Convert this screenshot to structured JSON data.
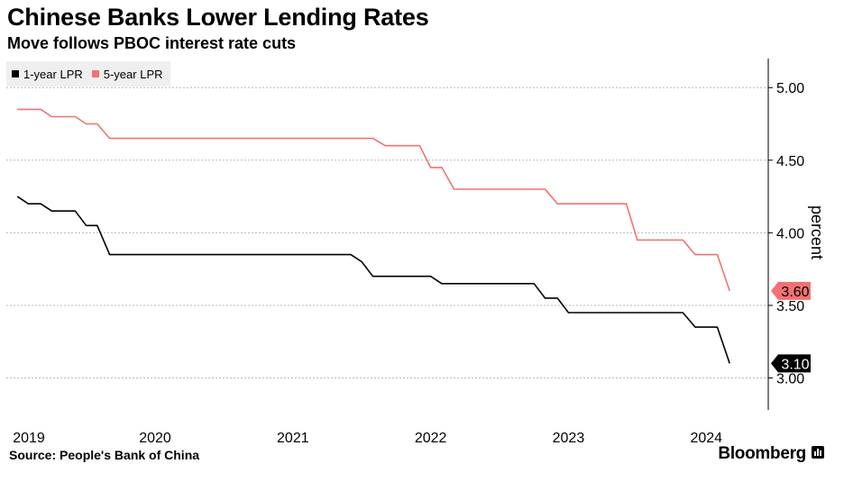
{
  "header": {
    "title": "Chinese Banks Lower Lending Rates",
    "subtitle": "Move follows PBOC interest rate cuts"
  },
  "footer": {
    "source": "Source: People's Bank of China",
    "brand": "Bloomberg"
  },
  "colors": {
    "one_year": "#000000",
    "five_year": "#f07274",
    "grid": "#b8b8b8",
    "axis": "#000000"
  },
  "chart_data": {
    "type": "line",
    "title": "Chinese Banks Lower Lending Rates",
    "subtitle": "Move follows PBOC interest rate cuts",
    "xlabel": "",
    "ylabel": "percent",
    "xlim": [
      2018.92,
      2024.45
    ],
    "ylim": [
      2.78,
      5.2
    ],
    "y_ticks": [
      3.0,
      3.5,
      4.0,
      4.5,
      5.0
    ],
    "y_tick_labels": [
      "3.00",
      "3.50",
      "4.00",
      "4.50",
      "5.00"
    ],
    "x_ticks": [
      2019,
      2020,
      2021,
      2022,
      2023,
      2024
    ],
    "x_tick_labels": [
      "2019",
      "2020",
      "2021",
      "2022",
      "2023",
      "2024"
    ],
    "grid": true,
    "legend": "top-left",
    "series": [
      {
        "name": "1-year LPR",
        "color": "#000000",
        "end_label": "3.10",
        "end_value": 3.1,
        "points": [
          [
            2019.0,
            4.25
          ],
          [
            2019.08,
            4.2
          ],
          [
            2019.17,
            4.2
          ],
          [
            2019.25,
            4.15
          ],
          [
            2019.42,
            4.15
          ],
          [
            2019.5,
            4.05
          ],
          [
            2019.58,
            4.05
          ],
          [
            2019.67,
            3.85
          ],
          [
            2021.42,
            3.85
          ],
          [
            2021.5,
            3.8
          ],
          [
            2021.58,
            3.7
          ],
          [
            2021.92,
            3.7
          ],
          [
            2022.0,
            3.7
          ],
          [
            2022.08,
            3.65
          ],
          [
            2022.75,
            3.65
          ],
          [
            2022.83,
            3.55
          ],
          [
            2022.92,
            3.55
          ],
          [
            2023.0,
            3.45
          ],
          [
            2023.83,
            3.45
          ],
          [
            2023.92,
            3.35
          ],
          [
            2024.08,
            3.35
          ],
          [
            2024.17,
            3.1
          ]
        ]
      },
      {
        "name": "5-year LPR",
        "color": "#f07274",
        "end_label": "3.60",
        "end_value": 3.6,
        "points": [
          [
            2019.0,
            4.85
          ],
          [
            2019.17,
            4.85
          ],
          [
            2019.25,
            4.8
          ],
          [
            2019.42,
            4.8
          ],
          [
            2019.5,
            4.75
          ],
          [
            2019.58,
            4.75
          ],
          [
            2019.67,
            4.65
          ],
          [
            2021.58,
            4.65
          ],
          [
            2021.67,
            4.6
          ],
          [
            2021.92,
            4.6
          ],
          [
            2022.0,
            4.45
          ],
          [
            2022.08,
            4.45
          ],
          [
            2022.17,
            4.3
          ],
          [
            2022.83,
            4.3
          ],
          [
            2022.92,
            4.2
          ],
          [
            2023.42,
            4.2
          ],
          [
            2023.5,
            3.95
          ],
          [
            2023.83,
            3.95
          ],
          [
            2023.92,
            3.85
          ],
          [
            2024.08,
            3.85
          ],
          [
            2024.17,
            3.6
          ]
        ]
      }
    ]
  }
}
